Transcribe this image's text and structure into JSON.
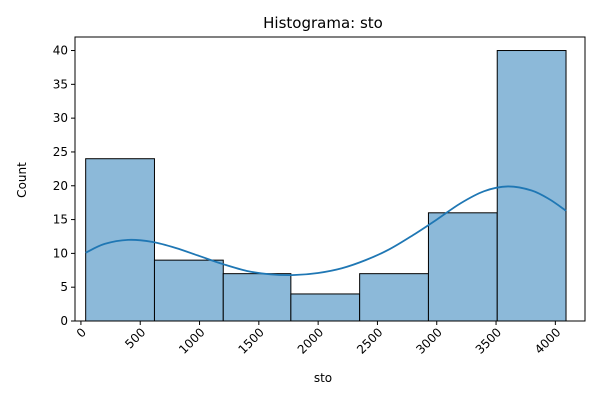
{
  "chart_data": {
    "type": "bar",
    "subtype": "histogram_with_kde",
    "title": "Histograma: sto",
    "xlabel": "sto",
    "ylabel": "Count",
    "xlim": [
      -50,
      4250
    ],
    "ylim": [
      0,
      42
    ],
    "x_ticks": [
      0,
      500,
      1000,
      1500,
      2000,
      2500,
      3000,
      3500,
      4000
    ],
    "x_tick_labels": [
      "0",
      "500",
      "1000",
      "1500",
      "2000",
      "2500",
      "3000",
      "3500",
      "4000"
    ],
    "x_tick_rotation": 45,
    "y_ticks": [
      0,
      5,
      10,
      15,
      20,
      25,
      30,
      35,
      40
    ],
    "y_tick_labels": [
      "0",
      "5",
      "10",
      "15",
      "20",
      "25",
      "30",
      "35",
      "40"
    ],
    "grid": false,
    "bins": [
      {
        "start": 40,
        "end": 620,
        "count": 24
      },
      {
        "start": 620,
        "end": 1200,
        "count": 9
      },
      {
        "start": 1200,
        "end": 1770,
        "count": 7
      },
      {
        "start": 1770,
        "end": 2350,
        "count": 4
      },
      {
        "start": 2350,
        "end": 2930,
        "count": 7
      },
      {
        "start": 2930,
        "end": 3510,
        "count": 16
      },
      {
        "start": 3510,
        "end": 4090,
        "count": 40
      }
    ],
    "kde": {
      "x": [
        40,
        200,
        400,
        600,
        800,
        1000,
        1200,
        1400,
        1600,
        1800,
        2000,
        2200,
        2400,
        2600,
        2800,
        3000,
        3200,
        3400,
        3600,
        3800,
        3950,
        4090
      ],
      "y": [
        10.1,
        11.4,
        12.0,
        11.7,
        10.8,
        9.6,
        8.4,
        7.4,
        6.9,
        6.8,
        7.1,
        7.8,
        9.0,
        10.6,
        12.7,
        15.0,
        17.4,
        19.2,
        19.9,
        19.3,
        18.0,
        16.3
      ]
    },
    "colors": {
      "bar_fill": "#8cb9d9",
      "bar_edge": "#000000",
      "kde_line": "#1f77b4"
    }
  }
}
